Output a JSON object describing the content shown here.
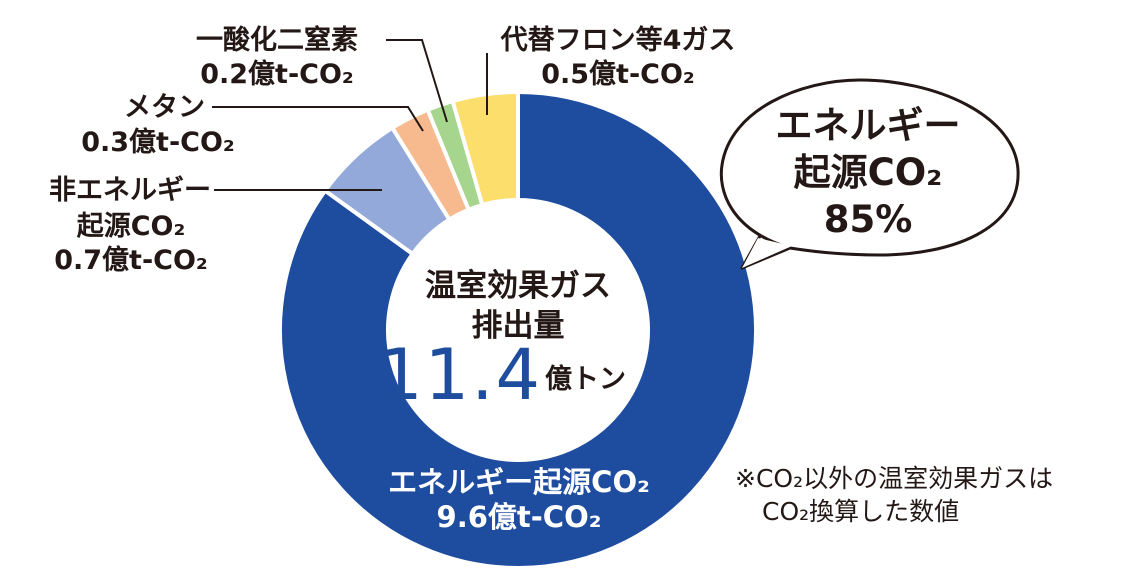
{
  "chart_data": {
    "type": "pie",
    "total": {
      "title_lines": [
        "温室効果ガス",
        "排出量"
      ],
      "value": "11.4",
      "unit": "億トン"
    },
    "slices": [
      {
        "label_lines": [
          "エネルギー起源CO₂",
          "9.6億t-CO₂"
        ],
        "value": 9.6,
        "color": "#1e4da0"
      },
      {
        "label_lines": [
          "非エネルギー",
          "起源CO₂",
          "0.7億t-CO₂"
        ],
        "value": 0.7,
        "color": "#93a9d9"
      },
      {
        "label_lines": [
          "メタン",
          "0.3億t-CO₂"
        ],
        "value": 0.3,
        "color": "#f6ba8e"
      },
      {
        "label_lines": [
          "一酸化二窒素",
          "0.2億t-CO₂"
        ],
        "value": 0.2,
        "color": "#a6d58d"
      },
      {
        "label_lines": [
          "代替フロン等4ガス",
          "0.5億t-CO₂"
        ],
        "value": 0.5,
        "color": "#fbde6c"
      }
    ],
    "callout": {
      "lines": [
        "エネルギー",
        "起源CO₂",
        "85%"
      ]
    },
    "note_lines": [
      "※CO₂以外の温室効果ガスは",
      "CO₂換算した数値"
    ]
  }
}
